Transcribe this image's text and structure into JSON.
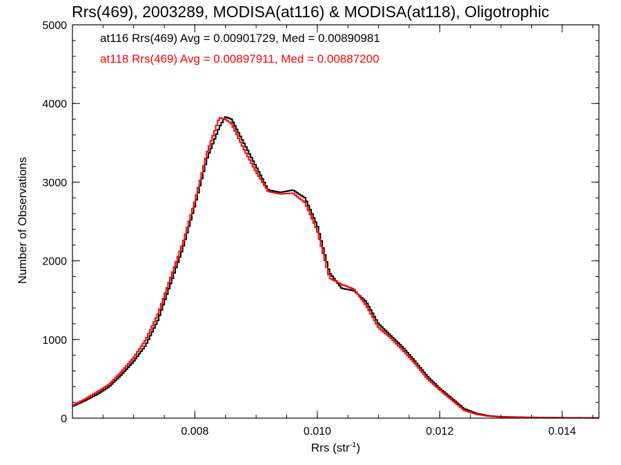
{
  "chart_data": {
    "type": "line",
    "title": "Rrs(469), 2003289, MODISA(at116) & MODISA(at118), Oligotrophic",
    "xlabel": "Rrs (str",
    "xlabel_sup": "-1",
    "xlabel_suffix": ")",
    "ylabel": "Number of Observations",
    "xlim": [
      0.006,
      0.0146
    ],
    "ylim": [
      0,
      5000
    ],
    "xticks": [
      0.008,
      0.01,
      0.012,
      0.014
    ],
    "xtick_labels": [
      "0.008",
      "0.010",
      "0.012",
      "0.014"
    ],
    "yticks": [
      0,
      1000,
      2000,
      3000,
      4000,
      5000
    ],
    "ytick_labels": [
      "0",
      "1000",
      "2000",
      "3000",
      "4000",
      "5000"
    ],
    "grid": false,
    "legend": [
      "at116 Rrs(469) Avg = 0.00901729, Med = 0.00890981",
      "at118 Rrs(469) Avg = 0.00897911, Med = 0.00887200"
    ],
    "legend_position": "top-left",
    "colors": {
      "at116": "#000000",
      "at118": "#ff0000"
    },
    "series": [
      {
        "color": "#000000",
        "x": [
          0.006,
          0.0062,
          0.0064,
          0.0066,
          0.0068,
          0.007,
          0.0072,
          0.0074,
          0.0076,
          0.0078,
          0.008,
          0.0082,
          0.0084,
          0.0085,
          0.0086,
          0.0088,
          0.009,
          0.0092,
          0.0094,
          0.0096,
          0.0098,
          0.01,
          0.0102,
          0.0104,
          0.0106,
          0.0108,
          0.011,
          0.0112,
          0.0114,
          0.0116,
          0.0118,
          0.012,
          0.0122,
          0.0124,
          0.0126,
          0.0128,
          0.013,
          0.0135,
          0.014,
          0.0146
        ],
        "y": [
          150,
          220,
          300,
          400,
          550,
          720,
          930,
          1250,
          1700,
          2150,
          2700,
          3300,
          3700,
          3830,
          3800,
          3500,
          3200,
          2900,
          2870,
          2900,
          2800,
          2450,
          1850,
          1650,
          1620,
          1480,
          1200,
          1050,
          900,
          720,
          530,
          380,
          250,
          120,
          60,
          30,
          18,
          10,
          6,
          4
        ]
      },
      {
        "color": "#ff0000",
        "x": [
          0.006,
          0.0062,
          0.0064,
          0.0066,
          0.0068,
          0.007,
          0.0072,
          0.0074,
          0.0076,
          0.0078,
          0.008,
          0.0082,
          0.0084,
          0.0085,
          0.0086,
          0.0088,
          0.009,
          0.0092,
          0.0094,
          0.0096,
          0.0098,
          0.01,
          0.0102,
          0.0104,
          0.0106,
          0.0108,
          0.011,
          0.0112,
          0.0114,
          0.0116,
          0.0118,
          0.012,
          0.0122,
          0.0124,
          0.0126,
          0.0128,
          0.013,
          0.0135,
          0.014,
          0.0146
        ],
        "y": [
          160,
          240,
          330,
          430,
          590,
          770,
          1000,
          1330,
          1780,
          2220,
          2760,
          3380,
          3820,
          3800,
          3740,
          3420,
          3130,
          2880,
          2850,
          2860,
          2740,
          2380,
          1780,
          1700,
          1640,
          1430,
          1150,
          1020,
          860,
          690,
          500,
          360,
          230,
          100,
          50,
          25,
          15,
          8,
          5,
          3
        ]
      }
    ]
  }
}
